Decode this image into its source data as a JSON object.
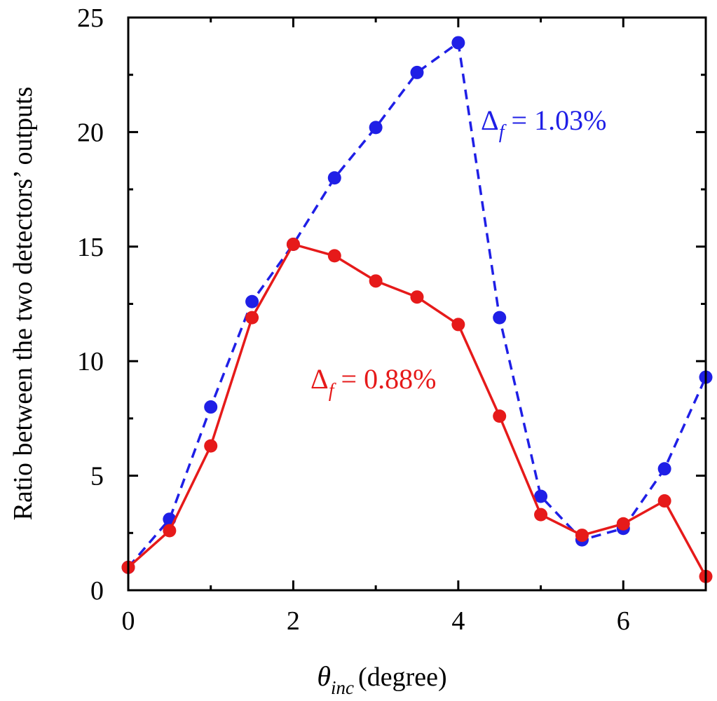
{
  "chart_data": {
    "type": "line",
    "xlabel": {
      "symbol": "θ",
      "subscript": "inc",
      "unit": "(degree)"
    },
    "ylabel": "Ratio between the two detectors’ outputs",
    "xlim": [
      0,
      7
    ],
    "ylim": [
      0,
      25
    ],
    "xticks": [
      0,
      2,
      4,
      6
    ],
    "yticks": [
      0,
      5,
      10,
      15,
      20,
      25
    ],
    "grid": false,
    "series": [
      {
        "name": "Δf = 1.03%",
        "color": "#1f1fe6",
        "line_style": "dashed",
        "x": [
          0,
          0.5,
          1,
          1.5,
          2,
          2.5,
          3,
          3.5,
          4,
          4.5,
          5,
          5.5,
          6,
          6.5,
          7
        ],
        "y": [
          1.0,
          3.1,
          8.0,
          12.6,
          15.1,
          18.0,
          20.2,
          22.6,
          23.9,
          11.9,
          4.1,
          2.2,
          2.7,
          5.3,
          9.3
        ]
      },
      {
        "name": "Δf = 0.88%",
        "color": "#e61a1a",
        "line_style": "solid",
        "x": [
          0,
          0.5,
          1,
          1.5,
          2,
          2.5,
          3,
          3.5,
          4,
          4.5,
          5,
          5.5,
          6,
          6.5,
          7
        ],
        "y": [
          1.0,
          2.6,
          6.3,
          11.9,
          15.1,
          14.6,
          13.5,
          12.8,
          11.6,
          7.6,
          3.3,
          2.4,
          2.9,
          3.9,
          0.6
        ]
      }
    ],
    "annotations": [
      {
        "series": 0,
        "symbol": "Δ",
        "subscript": "f",
        "value": " = 1.03%",
        "color": "#1f1fe6"
      },
      {
        "series": 1,
        "symbol": "Δ",
        "subscript": "f",
        "value": " = 0.88%",
        "color": "#e61a1a"
      }
    ]
  }
}
